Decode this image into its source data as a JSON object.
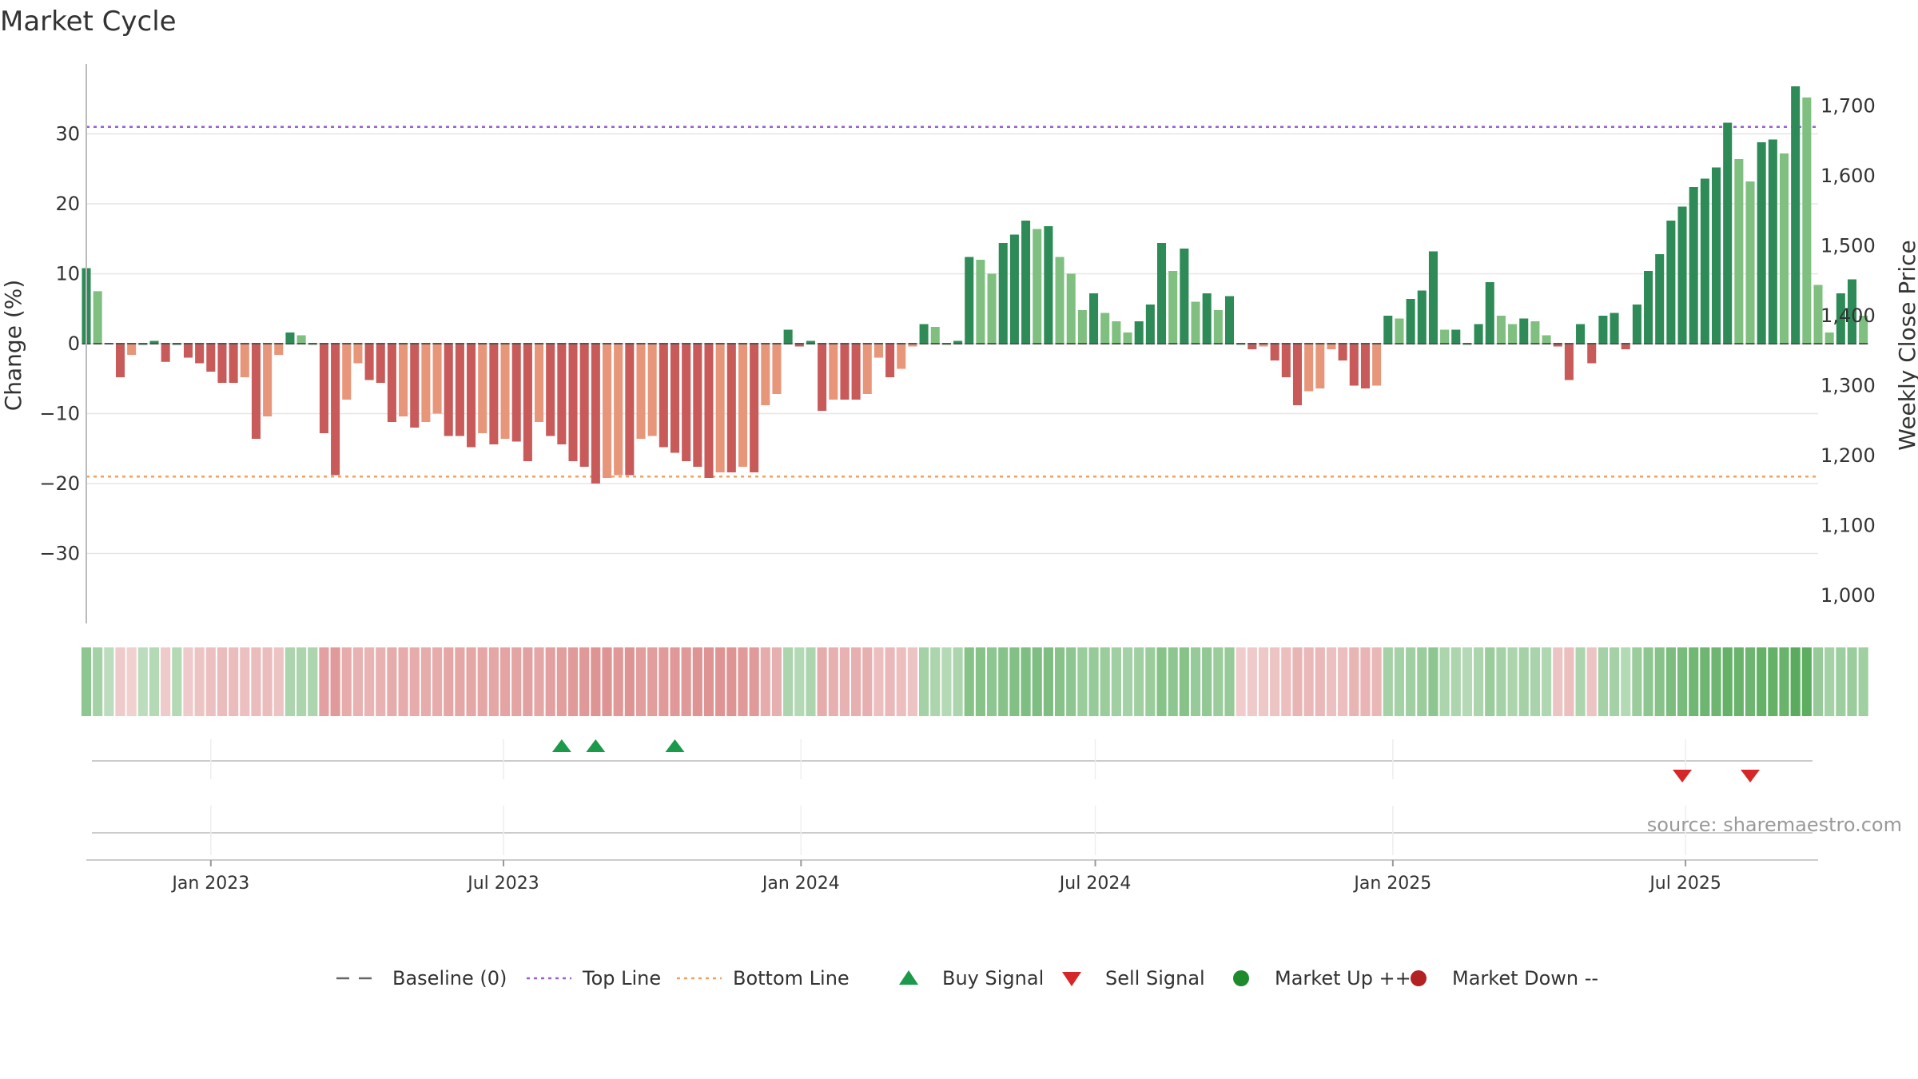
{
  "chart_data": {
    "type": "bar",
    "title": "Market Cycle",
    "ylabel_left": "Change (%)",
    "ylabel_right": "Weekly Close Price",
    "source": "source: sharemaestro.com",
    "y_left_ticks": [
      "30",
      "20",
      "10",
      "0",
      "−10",
      "−20",
      "−30"
    ],
    "y_left_tick_values": [
      30,
      20,
      10,
      0,
      -10,
      -20,
      -30
    ],
    "y_right_ticks": [
      "1,700",
      "1,600",
      "1,500",
      "1,400",
      "1,300",
      "1,200",
      "1,100",
      "1,000"
    ],
    "y_right_tick_values": [
      1700,
      1600,
      1500,
      1400,
      1300,
      1200,
      1100,
      1000
    ],
    "ylim_left": [
      -40,
      40
    ],
    "ylim_right": [
      960,
      1760
    ],
    "x_start": "2022-10-16",
    "x_end": "2025-09-21",
    "x_ticks": [
      {
        "label": "Jan 2023",
        "date": "2023-01-01"
      },
      {
        "label": "Jul 2023",
        "date": "2023-07-01"
      },
      {
        "label": "Jan 2024",
        "date": "2024-01-01"
      },
      {
        "label": "Jul 2024",
        "date": "2024-07-01"
      },
      {
        "label": "Jan 2025",
        "date": "2025-01-01"
      },
      {
        "label": "Jul 2025",
        "date": "2025-07-01"
      }
    ],
    "top_line": 31,
    "bottom_line": -19,
    "colors": {
      "up_strong": "#2e8b57",
      "up_weak": "#7fbf7f",
      "down_strong": "#c85a5a",
      "down_weak": "#e8967a",
      "top_line": "#9a5fd0",
      "bottom_line": "#f0a060",
      "buy": "#1a9a4a",
      "sell": "#d62728",
      "market_up": "#1e8a2e",
      "market_down": "#b22222"
    },
    "start_date": "2022-10-16",
    "interval_days": 7,
    "series": [
      {
        "values": [
          10.8,
          7.5,
          0.1,
          -4.8,
          -1.6,
          0.0,
          0.4,
          -2.6,
          0.0,
          -2.0,
          -2.8,
          -4.0,
          -5.6,
          -5.6,
          -4.8,
          -13.6,
          -10.4,
          -1.6,
          1.6,
          1.2,
          0.0,
          -12.8,
          -18.8,
          -8.0,
          -2.8,
          -5.2,
          -5.6,
          -11.2,
          -10.4,
          -12.0,
          -11.2,
          -10.0,
          -13.2,
          -13.2,
          -14.8,
          -12.8,
          -14.4,
          -13.6,
          -14.0,
          -16.8,
          -11.2,
          -13.2,
          -14.4,
          -16.8,
          -17.6,
          -20.0,
          -19.2,
          -18.8,
          -18.8,
          -13.6,
          -13.2,
          -14.8,
          -15.6,
          -16.8,
          -17.6,
          -19.2,
          -18.4,
          -18.4,
          -17.6,
          -18.4,
          -8.8,
          -7.2,
          2.0,
          -0.4,
          0.4,
          -9.6,
          -8.0,
          -8.0,
          -8.0,
          -7.2,
          -2.0,
          -4.8,
          -3.6,
          -0.4,
          2.8,
          2.4,
          0.0,
          0.4,
          12.4,
          12.0,
          10.0,
          14.4,
          15.6,
          17.6,
          16.4,
          16.8,
          12.4,
          10.0,
          4.8,
          7.2,
          4.4,
          3.2,
          1.6,
          3.2,
          5.6,
          14.4,
          10.4,
          13.6,
          6.0,
          7.2,
          4.8,
          6.8,
          0.0,
          -0.8,
          -0.4,
          -2.4,
          -4.8,
          -8.8,
          -6.8,
          -6.4,
          -0.8,
          -2.4,
          -6.0,
          -6.4,
          -6.0,
          4.0,
          3.6,
          6.4,
          7.6,
          13.2,
          2.0,
          2.0,
          0.0,
          2.8,
          8.8,
          4.0,
          2.8,
          3.6,
          3.2,
          1.2,
          -0.4,
          -5.2,
          2.8,
          -2.8,
          4.0,
          4.4,
          -0.8,
          5.6,
          10.4,
          12.8,
          17.6,
          19.6,
          22.4,
          23.6,
          25.2,
          31.6,
          26.4,
          23.2,
          28.8,
          29.2,
          27.2,
          36.8,
          35.2,
          8.4,
          1.6,
          7.2,
          9.2,
          4.0
        ]
      }
    ],
    "heat_values": [
      0.5,
      0.35,
      0.2,
      -0.2,
      -0.15,
      0.2,
      0.25,
      -0.2,
      0.25,
      -0.2,
      -0.25,
      -0.28,
      -0.32,
      -0.32,
      -0.28,
      -0.32,
      -0.32,
      -0.25,
      0.3,
      0.3,
      0.3,
      -0.55,
      -0.6,
      -0.45,
      -0.4,
      -0.38,
      -0.4,
      -0.45,
      -0.45,
      -0.45,
      -0.45,
      -0.45,
      -0.5,
      -0.5,
      -0.5,
      -0.5,
      -0.5,
      -0.52,
      -0.52,
      -0.55,
      -0.5,
      -0.55,
      -0.58,
      -0.6,
      -0.62,
      -0.65,
      -0.65,
      -0.62,
      -0.65,
      -0.58,
      -0.58,
      -0.6,
      -0.62,
      -0.62,
      -0.65,
      -0.65,
      -0.65,
      -0.65,
      -0.6,
      -0.6,
      -0.45,
      -0.42,
      0.3,
      0.25,
      0.3,
      -0.45,
      -0.42,
      -0.4,
      -0.42,
      -0.42,
      -0.3,
      -0.35,
      -0.3,
      -0.25,
      0.35,
      0.3,
      0.25,
      0.3,
      0.55,
      0.55,
      0.5,
      0.55,
      0.58,
      0.6,
      0.6,
      0.6,
      0.55,
      0.5,
      0.42,
      0.45,
      0.42,
      0.38,
      0.35,
      0.38,
      0.42,
      0.55,
      0.5,
      0.55,
      0.45,
      0.48,
      0.42,
      0.45,
      -0.18,
      -0.2,
      -0.22,
      -0.25,
      -0.3,
      -0.38,
      -0.35,
      -0.35,
      -0.28,
      -0.3,
      -0.38,
      -0.38,
      -0.36,
      0.35,
      0.35,
      0.38,
      0.42,
      0.5,
      0.3,
      0.3,
      0.25,
      0.3,
      0.42,
      0.35,
      0.3,
      0.35,
      0.32,
      0.28,
      -0.25,
      -0.3,
      0.3,
      -0.25,
      0.35,
      0.35,
      0.25,
      0.42,
      0.5,
      0.55,
      0.62,
      0.65,
      0.7,
      0.72,
      0.72,
      0.78,
      0.75,
      0.72,
      0.78,
      0.78,
      0.75,
      0.85,
      0.82,
      0.45,
      0.35,
      0.4,
      0.42,
      0.38
    ],
    "buy_signals": [
      "2023-08-06",
      "2023-08-27",
      "2023-10-15"
    ],
    "sell_signals": [
      "2025-06-29",
      "2025-08-10"
    ],
    "legend": [
      {
        "label": "Baseline (0)",
        "kind": "dash",
        "color": "#666666"
      },
      {
        "label": "Top Line",
        "kind": "dot",
        "color": "#9a5fd0"
      },
      {
        "label": "Bottom Line",
        "kind": "dot",
        "color": "#f0a060"
      },
      {
        "label": "Buy Signal",
        "kind": "tri-up",
        "color": "#1a9a4a"
      },
      {
        "label": "Sell Signal",
        "kind": "tri-down",
        "color": "#d62728"
      },
      {
        "label": "Market Up ++",
        "kind": "circle",
        "color": "#1e8a2e"
      },
      {
        "label": "Market Down --",
        "kind": "circle",
        "color": "#b22222"
      }
    ]
  }
}
